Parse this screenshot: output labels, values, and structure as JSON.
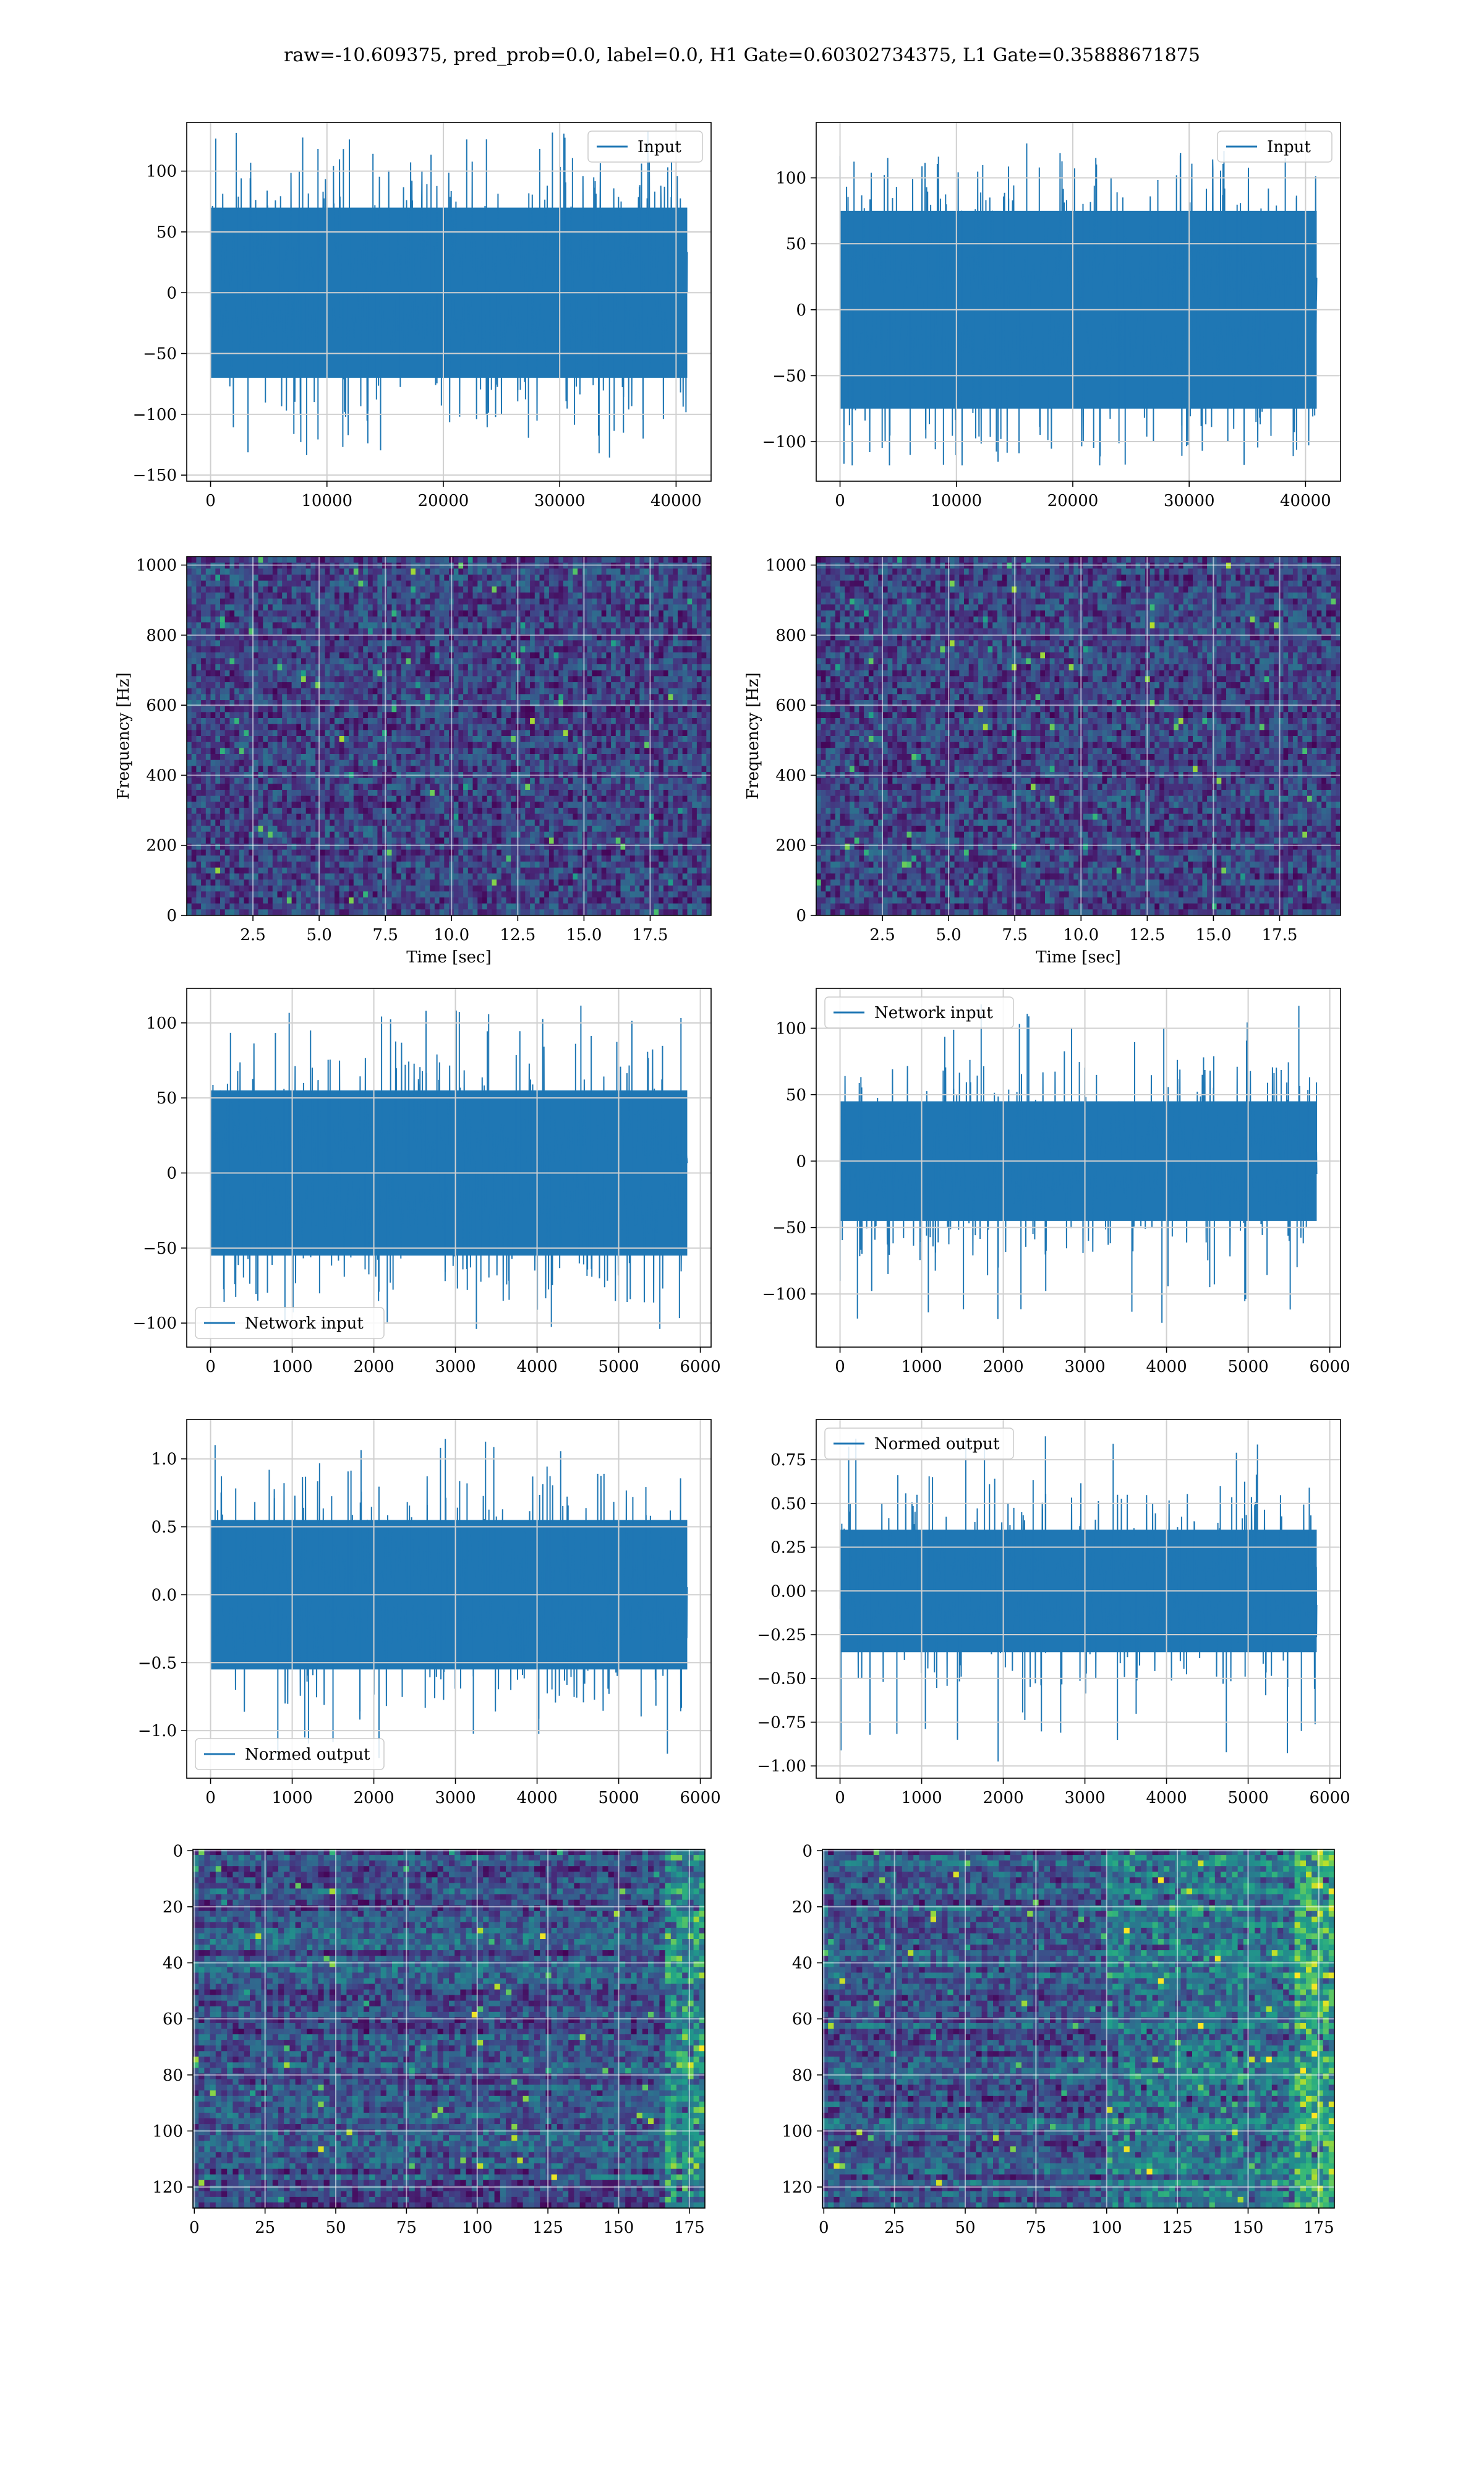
{
  "figure": {
    "title": "raw=-10.609375, pred_prob=0.0, label=0.0, H1 Gate=0.60302734375, L1 Gate=0.35888671875"
  },
  "colors": {
    "series": "#1f77b4",
    "grid": "#d0d0d0",
    "viridis": [
      "#440154",
      "#482878",
      "#3e4989",
      "#31688e",
      "#26828e",
      "#1f9e89",
      "#35b779",
      "#6ece58",
      "#b5de2b",
      "#fde725"
    ]
  },
  "chart_data": [
    {
      "id": "h1-input",
      "type": "line",
      "legend": "Input",
      "legend_loc": "upper right",
      "x_range": [
        0,
        40960
      ],
      "y_range": [
        -150,
        130
      ],
      "xticks": [
        0,
        10000,
        20000,
        30000,
        40000
      ],
      "xtick_labels": [
        "0",
        "10000",
        "20000",
        "30000",
        "40000"
      ],
      "yticks": [
        -150,
        -100,
        -50,
        0,
        50,
        100
      ],
      "ytick_labels": [
        "−150",
        "−100",
        "−50",
        "0",
        "50",
        "100"
      ],
      "xlim": [
        -2048,
        43008
      ],
      "ylim": [
        -155,
        140
      ],
      "envelope": {
        "core": 70,
        "peak_max": 133,
        "peak_min": -140
      },
      "grid": true
    },
    {
      "id": "l1-input",
      "type": "line",
      "legend": "Input",
      "legend_loc": "upper right",
      "x_range": [
        0,
        40960
      ],
      "y_range": [
        -118,
        132
      ],
      "xticks": [
        0,
        10000,
        20000,
        30000,
        40000
      ],
      "xtick_labels": [
        "0",
        "10000",
        "20000",
        "30000",
        "40000"
      ],
      "yticks": [
        -100,
        -50,
        0,
        50,
        100
      ],
      "ytick_labels": [
        "−100",
        "−50",
        "0",
        "50",
        "100"
      ],
      "xlim": [
        -2048,
        43008
      ],
      "ylim": [
        -130,
        142
      ],
      "envelope": {
        "core": 75,
        "peak_max": 132,
        "peak_min": -118
      },
      "grid": true
    },
    {
      "id": "h1-spectrogram",
      "type": "heatmap",
      "xlabel": "Time [sec]",
      "ylabel": "Frequency [Hz]",
      "xlim": [
        0,
        19.8
      ],
      "ylim": [
        0,
        1024
      ],
      "xticks": [
        2.5,
        5.0,
        7.5,
        10.0,
        12.5,
        15.0,
        17.5
      ],
      "xtick_labels": [
        "2.5",
        "5.0",
        "7.5",
        "10.0",
        "12.5",
        "15.0",
        "17.5"
      ],
      "yticks": [
        0,
        200,
        400,
        600,
        800,
        1000
      ],
      "ytick_labels": [
        "0",
        "200",
        "400",
        "600",
        "800",
        "1000"
      ],
      "colormap": "viridis",
      "grid": true
    },
    {
      "id": "l1-spectrogram",
      "type": "heatmap",
      "xlabel": "Time [sec]",
      "ylabel": "Frequency [Hz]",
      "xlim": [
        0,
        19.8
      ],
      "ylim": [
        0,
        1024
      ],
      "xticks": [
        2.5,
        5.0,
        7.5,
        10.0,
        12.5,
        15.0,
        17.5
      ],
      "xtick_labels": [
        "2.5",
        "5.0",
        "7.5",
        "10.0",
        "12.5",
        "15.0",
        "17.5"
      ],
      "yticks": [
        0,
        200,
        400,
        600,
        800,
        1000
      ],
      "ytick_labels": [
        "0",
        "200",
        "400",
        "600",
        "800",
        "1000"
      ],
      "colormap": "viridis",
      "grid": true
    },
    {
      "id": "h1-network-input",
      "type": "line",
      "legend": "Network input",
      "legend_loc": "lower left",
      "x_range": [
        0,
        5840
      ],
      "y_range": [
        -105,
        112
      ],
      "xticks": [
        0,
        1000,
        2000,
        3000,
        4000,
        5000,
        6000
      ],
      "xtick_labels": [
        "0",
        "1000",
        "2000",
        "3000",
        "4000",
        "5000",
        "6000"
      ],
      "yticks": [
        -100,
        -50,
        0,
        50,
        100
      ],
      "ytick_labels": [
        "−100",
        "−50",
        "0",
        "50",
        "100"
      ],
      "xlim": [
        -292,
        6132
      ],
      "ylim": [
        -116,
        123
      ],
      "envelope": {
        "core": 55,
        "peak_max": 112,
        "peak_min": -105
      },
      "grid": true
    },
    {
      "id": "l1-network-input",
      "type": "line",
      "legend": "Network input",
      "legend_loc": "upper left",
      "x_range": [
        0,
        5840
      ],
      "y_range": [
        -128,
        118
      ],
      "xticks": [
        0,
        1000,
        2000,
        3000,
        4000,
        5000,
        6000
      ],
      "xtick_labels": [
        "0",
        "1000",
        "2000",
        "3000",
        "4000",
        "5000",
        "6000"
      ],
      "yticks": [
        -100,
        -50,
        0,
        50,
        100
      ],
      "ytick_labels": [
        "−100",
        "−50",
        "0",
        "50",
        "100"
      ],
      "xlim": [
        -292,
        6132
      ],
      "ylim": [
        -140,
        130
      ],
      "envelope": {
        "core": 45,
        "peak_max": 118,
        "peak_min": -128
      },
      "grid": true
    },
    {
      "id": "h1-normed-output",
      "type": "line",
      "legend": "Normed output",
      "legend_loc": "lower left",
      "x_range": [
        0,
        5840
      ],
      "y_range": [
        -1.22,
        1.16
      ],
      "xticks": [
        0,
        1000,
        2000,
        3000,
        4000,
        5000,
        6000
      ],
      "xtick_labels": [
        "0",
        "1000",
        "2000",
        "3000",
        "4000",
        "5000",
        "6000"
      ],
      "yticks": [
        -1.0,
        -0.5,
        0.0,
        0.5,
        1.0
      ],
      "ytick_labels": [
        "−1.0",
        "−0.5",
        "0.0",
        "0.5",
        "1.0"
      ],
      "xlim": [
        -292,
        6132
      ],
      "ylim": [
        -1.35,
        1.29
      ],
      "envelope": {
        "core": 0.55,
        "peak_max": 1.16,
        "peak_min": -1.22
      },
      "grid": true
    },
    {
      "id": "l1-normed-output",
      "type": "line",
      "legend": "Normed output",
      "legend_loc": "upper left",
      "x_range": [
        0,
        5840
      ],
      "y_range": [
        -0.98,
        0.89
      ],
      "xticks": [
        0,
        1000,
        2000,
        3000,
        4000,
        5000,
        6000
      ],
      "xtick_labels": [
        "0",
        "1000",
        "2000",
        "3000",
        "4000",
        "5000",
        "6000"
      ],
      "yticks": [
        -1.0,
        -0.75,
        -0.5,
        -0.25,
        0.0,
        0.25,
        0.5,
        0.75
      ],
      "ytick_labels": [
        "−1.00",
        "−0.75",
        "−0.50",
        "−0.25",
        "0.00",
        "0.25",
        "0.50",
        "0.75"
      ],
      "xlim": [
        -292,
        6132
      ],
      "ylim": [
        -1.07,
        0.98
      ],
      "envelope": {
        "core": 0.35,
        "peak_max": 0.89,
        "peak_min": -0.98
      },
      "grid": true
    },
    {
      "id": "h1-feature-map",
      "type": "heatmap",
      "xlim": [
        -0.5,
        180.5
      ],
      "ylim": [
        127.5,
        -0.5
      ],
      "rows": 128,
      "cols": 181,
      "xticks": [
        0,
        25,
        50,
        75,
        100,
        125,
        150,
        175
      ],
      "xtick_labels": [
        "0",
        "25",
        "50",
        "75",
        "100",
        "125",
        "150",
        "175"
      ],
      "yticks": [
        0,
        20,
        40,
        60,
        80,
        100,
        120
      ],
      "ytick_labels": [
        "0",
        "20",
        "40",
        "60",
        "80",
        "100",
        "120"
      ],
      "colormap": "viridis",
      "grid": true
    },
    {
      "id": "l1-feature-map",
      "type": "heatmap",
      "xlim": [
        -0.5,
        180.5
      ],
      "ylim": [
        127.5,
        -0.5
      ],
      "rows": 128,
      "cols": 181,
      "xticks": [
        0,
        25,
        50,
        75,
        100,
        125,
        150,
        175
      ],
      "xtick_labels": [
        "0",
        "25",
        "50",
        "75",
        "100",
        "125",
        "150",
        "175"
      ],
      "yticks": [
        0,
        20,
        40,
        60,
        80,
        100,
        120
      ],
      "ytick_labels": [
        "0",
        "20",
        "40",
        "60",
        "80",
        "100",
        "120"
      ],
      "colormap": "viridis",
      "grid": true
    }
  ]
}
